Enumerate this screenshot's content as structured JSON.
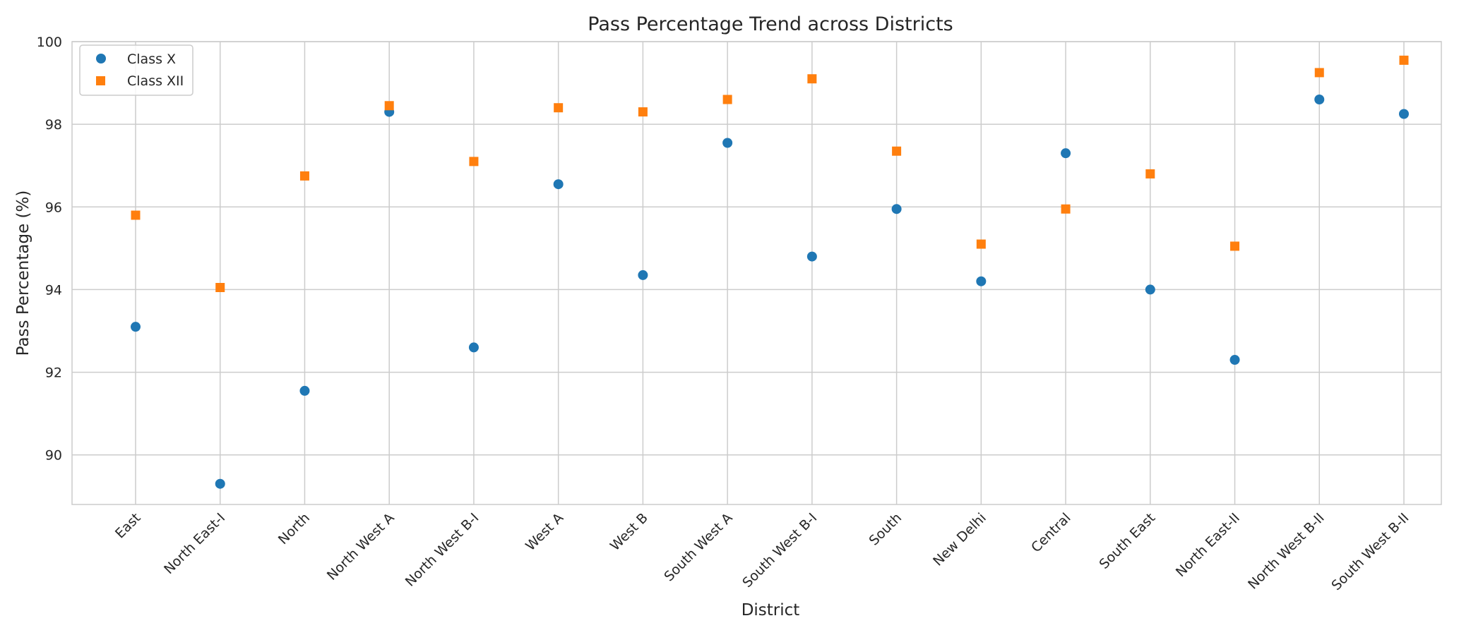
{
  "chart_data": {
    "type": "scatter",
    "title": "Pass Percentage Trend across Districts",
    "xlabel": "District",
    "ylabel": "Pass Percentage (%)",
    "ylim": [
      88.8,
      100
    ],
    "yticks": [
      90,
      92,
      94,
      96,
      98,
      100
    ],
    "grid": true,
    "legend_position": "top-left",
    "categories": [
      "East",
      "North East-I",
      "North",
      "North West A",
      "North West B-I",
      "West A",
      "West B",
      "South West A",
      "South West B-I",
      "South",
      "New Delhi",
      "Central",
      "South East",
      "North East-II",
      "North West B-II",
      "South West B-II"
    ],
    "series": [
      {
        "name": "Class X",
        "marker": "circle",
        "color": "#1f77b4",
        "values": [
          93.1,
          89.3,
          91.55,
          98.3,
          92.6,
          96.55,
          94.35,
          97.55,
          94.8,
          95.95,
          94.2,
          97.3,
          94.0,
          92.3,
          98.6,
          98.25
        ]
      },
      {
        "name": "Class XII",
        "marker": "square",
        "color": "#ff7f0e",
        "values": [
          95.8,
          94.05,
          96.75,
          98.45,
          97.1,
          98.4,
          98.3,
          98.6,
          99.1,
          97.35,
          95.1,
          95.95,
          96.8,
          95.05,
          99.25,
          99.55
        ]
      }
    ]
  }
}
